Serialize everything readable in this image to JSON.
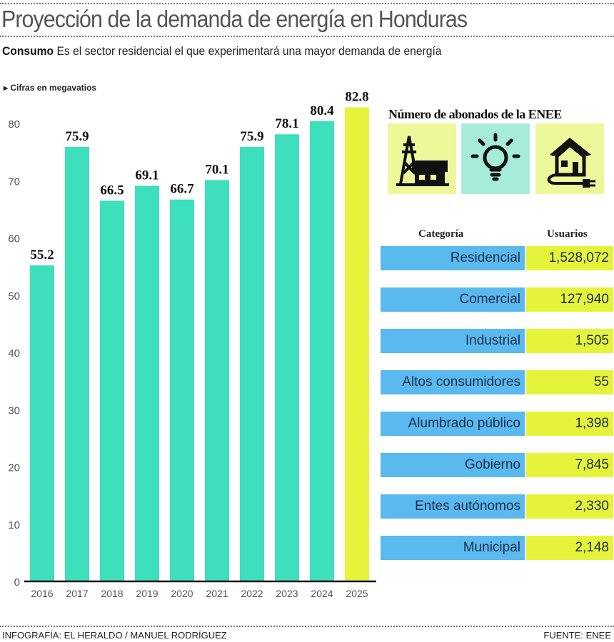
{
  "header": {
    "title": "Proyección de la demanda de energía en Honduras",
    "subtitle_bold": "Consumo",
    "subtitle": "Es el sector residencial el que experimentará una mayor demanda de energía"
  },
  "chart_data": {
    "type": "bar",
    "unit_note": "Cifras en megavatios",
    "categories": [
      "2016",
      "2017",
      "2018",
      "2019",
      "2020",
      "2021",
      "2022",
      "2023",
      "2024",
      "2025"
    ],
    "values": [
      55.2,
      75.9,
      66.5,
      69.1,
      66.7,
      70.1,
      75.9,
      78.1,
      80.4,
      82.8
    ],
    "data_labels": [
      "55.2",
      "75.9",
      "66.5",
      "69.1",
      "66.7",
      "70.1",
      "75.9",
      "78.1",
      "80.4",
      "82.8"
    ],
    "yticks": [
      0,
      10,
      20,
      30,
      40,
      50,
      60,
      70,
      80
    ],
    "ylim": [
      0,
      80
    ],
    "grid": false,
    "colors": {
      "actual": "#3ddfbc",
      "projection": "#e5f43a"
    },
    "highlight_category": "2025"
  },
  "subscribers": {
    "title": "Número de abonados de la ENEE",
    "icons": [
      "power-tower-house-icon",
      "lightbulb-icon",
      "house-plug-icon"
    ],
    "headers": {
      "category": "Categoría",
      "users": "Usuarios"
    },
    "rows": [
      {
        "category": "Residencial",
        "users": "1,528,072"
      },
      {
        "category": "Comercial",
        "users": "127,940"
      },
      {
        "category": "Industrial",
        "users": "1,505"
      },
      {
        "category": "Altos consumidores",
        "users": "55"
      },
      {
        "category": "Alumbrado público",
        "users": "1,398"
      },
      {
        "category": "Gobierno",
        "users": "7,845"
      },
      {
        "category": "Entes autónomos",
        "users": "2,330"
      },
      {
        "category": "Municipal",
        "users": "2,148"
      }
    ]
  },
  "footer": {
    "credit": "INFOGRAFÍA: EL HERALDO / MANUEL RODRÍGUEZ",
    "source": "FUENTE: ENEE"
  }
}
